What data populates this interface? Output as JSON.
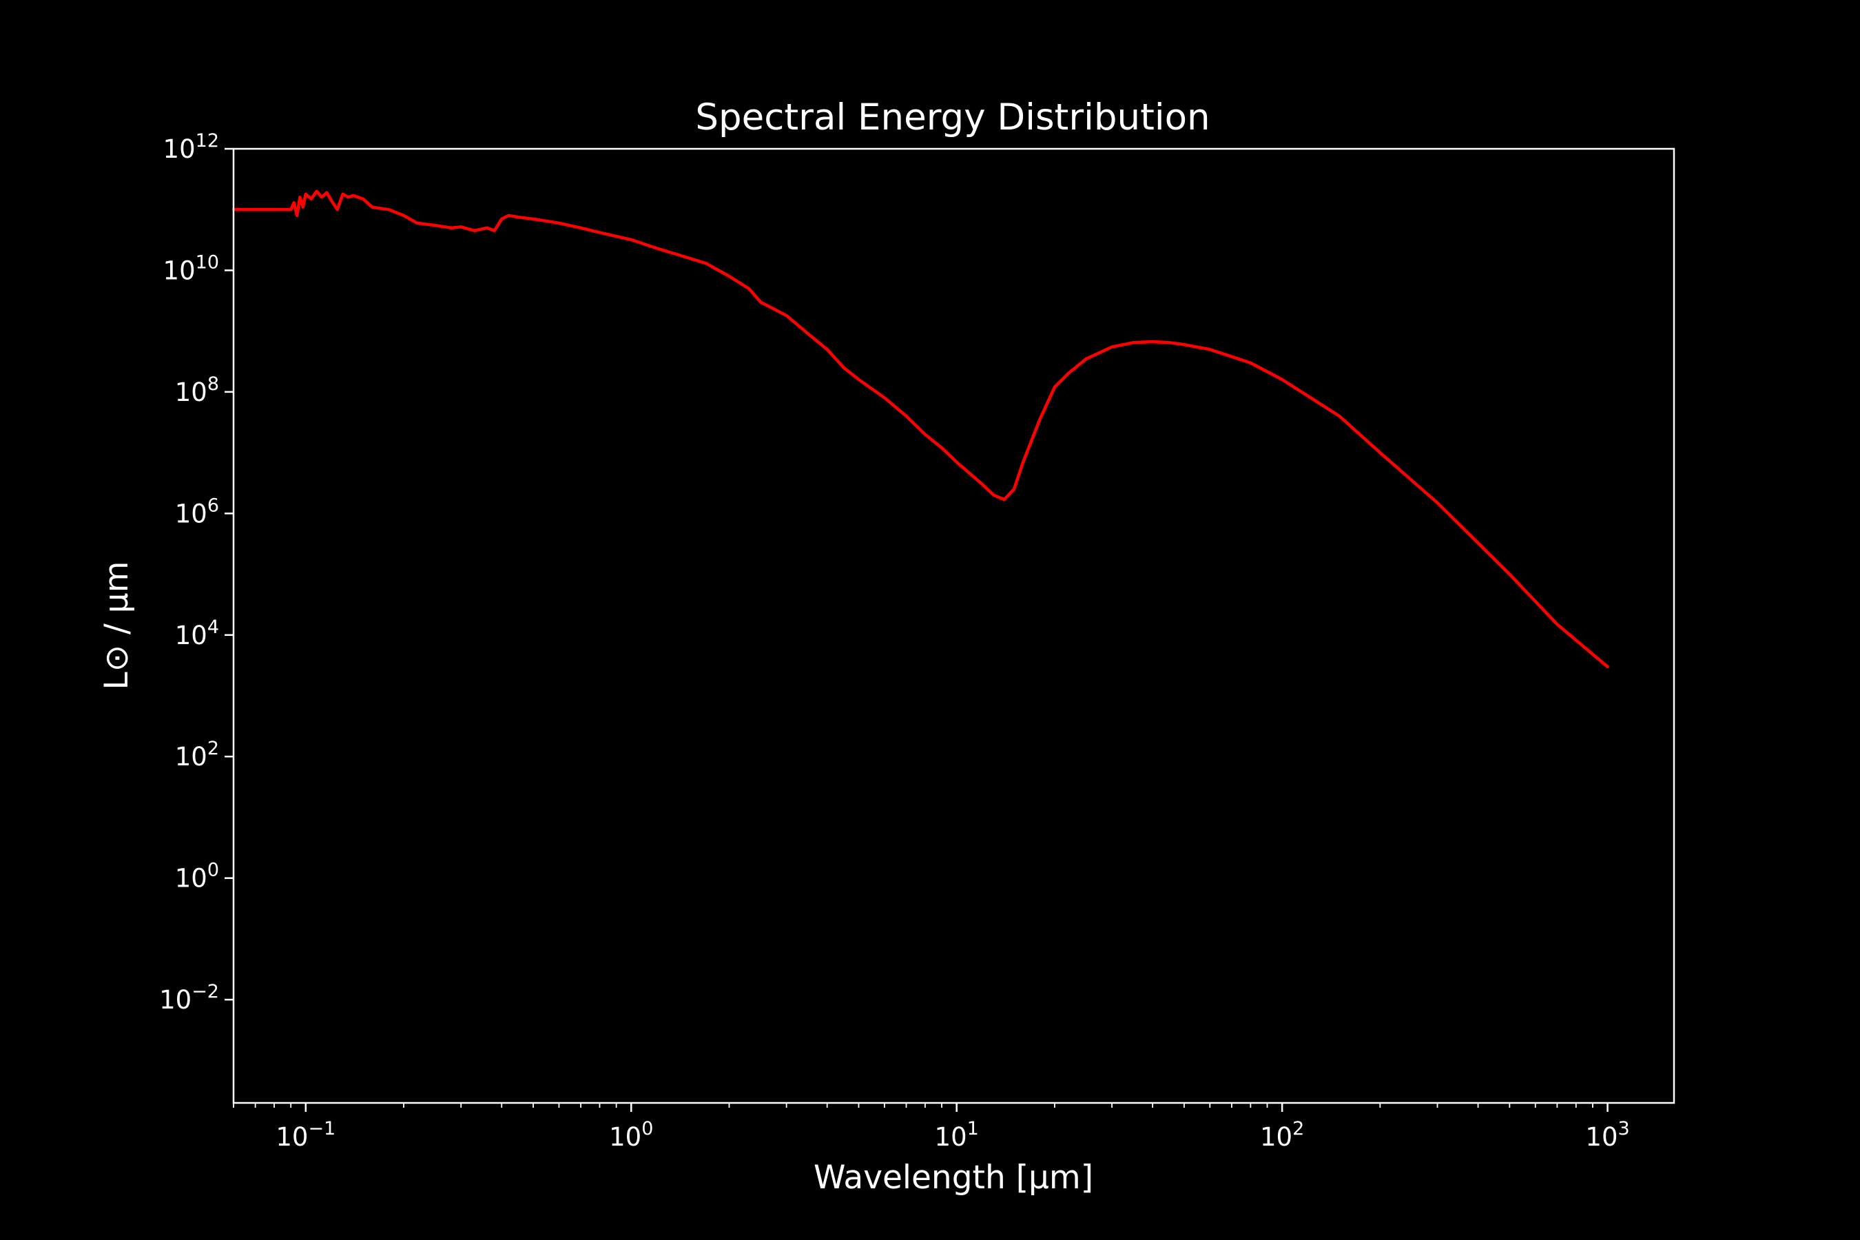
{
  "chart_data": {
    "type": "line",
    "title": "Spectral Energy Distribution",
    "xlabel": "Wavelength [μm]",
    "ylabel": "L⊙ / μm",
    "xscale": "log",
    "yscale": "log",
    "xlim": [
      0.06,
      1600
    ],
    "ylim": [
      0.0002,
      1000000000000.0
    ],
    "grid": false,
    "background": "#000000",
    "foreground": "#ffffff",
    "line_color": "#ff0000",
    "x_ticks": [
      {
        "value": 0.1,
        "base": "10",
        "exp": "−1"
      },
      {
        "value": 1,
        "base": "10",
        "exp": "0"
      },
      {
        "value": 10,
        "base": "10",
        "exp": "1"
      },
      {
        "value": 100,
        "base": "10",
        "exp": "2"
      },
      {
        "value": 1000,
        "base": "10",
        "exp": "3"
      }
    ],
    "y_ticks": [
      {
        "value": 0.01,
        "base": "10",
        "exp": "−2"
      },
      {
        "value": 1,
        "base": "10",
        "exp": "0"
      },
      {
        "value": 100,
        "base": "10",
        "exp": "2"
      },
      {
        "value": 10000,
        "base": "10",
        "exp": "4"
      },
      {
        "value": 1000000,
        "base": "10",
        "exp": "6"
      },
      {
        "value": 100000000,
        "base": "10",
        "exp": "8"
      },
      {
        "value": 10000000000,
        "base": "10",
        "exp": "10"
      },
      {
        "value": 1000000000000,
        "base": "10",
        "exp": "12"
      }
    ],
    "series": [
      {
        "x": [
          0.06,
          0.09,
          0.092,
          0.094,
          0.096,
          0.098,
          0.1,
          0.104,
          0.108,
          0.112,
          0.116,
          0.12,
          0.125,
          0.13,
          0.135,
          0.14,
          0.15,
          0.16,
          0.18,
          0.2,
          0.22,
          0.25,
          0.28,
          0.3,
          0.33,
          0.36,
          0.38,
          0.4,
          0.42,
          0.45,
          0.5,
          0.6,
          0.7,
          0.8,
          1.0,
          1.2,
          1.5,
          1.7,
          2.0,
          2.3,
          2.5,
          3.0,
          3.5,
          4.0,
          4.5,
          5.0,
          6.0,
          7.0,
          8.0,
          9.0,
          10.0,
          11.0,
          12.0,
          13.0,
          14.0,
          15.0,
          16.0,
          18.0,
          20.0,
          22.0,
          25.0,
          30.0,
          35.0,
          40.0,
          45.0,
          50.0,
          60.0,
          80.0,
          100.0,
          150.0,
          200.0,
          300.0,
          500.0,
          700.0,
          1000.0
        ],
        "y": [
          100000000000.0,
          100000000000.0,
          130000000000.0,
          80000000000.0,
          160000000000.0,
          110000000000.0,
          180000000000.0,
          150000000000.0,
          200000000000.0,
          160000000000.0,
          190000000000.0,
          140000000000.0,
          100000000000.0,
          180000000000.0,
          160000000000.0,
          170000000000.0,
          150000000000.0,
          110000000000.0,
          100000000000.0,
          80000000000.0,
          60000000000.0,
          55000000000.0,
          50000000000.0,
          52000000000.0,
          45000000000.0,
          50000000000.0,
          45000000000.0,
          70000000000.0,
          80000000000.0,
          75000000000.0,
          70000000000.0,
          60000000000.0,
          50000000000.0,
          42000000000.0,
          32000000000.0,
          23000000000.0,
          16000000000.0,
          13000000000.0,
          8000000000.0,
          5000000000.0,
          3000000000.0,
          1800000000.0,
          900000000.0,
          500000000.0,
          250000000.0,
          160000000.0,
          80000000.0,
          40000000.0,
          20000000.0,
          12000000.0,
          7000000.0,
          4500000.0,
          3000000.0,
          2000000.0,
          1700000.0,
          2500000.0,
          7000000.0,
          35000000.0,
          120000000.0,
          200000000.0,
          350000000.0,
          550000000.0,
          650000000.0,
          670000000.0,
          650000000.0,
          600000000.0,
          500000000.0,
          300000000.0,
          160000000.0,
          40000000.0,
          10000000.0,
          1500000.0,
          100000.0,
          15000.0,
          3000.0
        ]
      }
    ]
  }
}
